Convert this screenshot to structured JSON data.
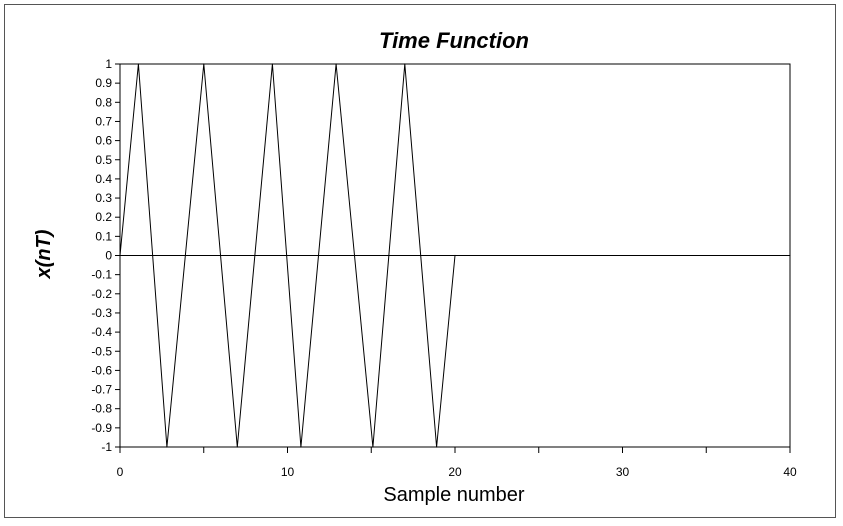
{
  "chart_data": {
    "type": "line",
    "title": "Time Function",
    "xlabel": "Sample number",
    "ylabel": "x(nT)",
    "xlim": [
      0,
      40
    ],
    "ylim": [
      -1,
      1
    ],
    "x_ticks": [
      0,
      5,
      10,
      15,
      20,
      25,
      30,
      35,
      40
    ],
    "x_tick_labels": [
      "0",
      "",
      "10",
      "",
      "20",
      "",
      "30",
      "",
      "40"
    ],
    "y_ticks": [
      1,
      0.9,
      0.8,
      0.7,
      0.6,
      0.5,
      0.4,
      0.3,
      0.2,
      0.1,
      0,
      -0.1,
      -0.2,
      -0.3,
      -0.4,
      -0.5,
      -0.6,
      -0.7,
      -0.8,
      -0.9,
      -1
    ],
    "y_tick_labels": [
      "1",
      "0.9",
      "0.8",
      "0.7",
      "0.6",
      "0.5",
      "0.4",
      "0.3",
      "0.2",
      "0.1",
      "0",
      "-0.1",
      "-0.2",
      "-0.3",
      "-0.4",
      "-0.5",
      "-0.6",
      "-0.7",
      "-0.8",
      "-0.9",
      "-1"
    ],
    "grid": false,
    "reference_line_y": 0,
    "line_color": "#000000",
    "series": [
      {
        "x": [
          0,
          1.1,
          2.8,
          5.0,
          7.0,
          9.1,
          10.8,
          12.9,
          15.1,
          17.0,
          18.9,
          20.0,
          40.0
        ],
        "y": [
          0,
          1,
          -1,
          1,
          -1,
          1,
          -1,
          1,
          -1,
          1,
          -1,
          0,
          0
        ]
      }
    ]
  }
}
